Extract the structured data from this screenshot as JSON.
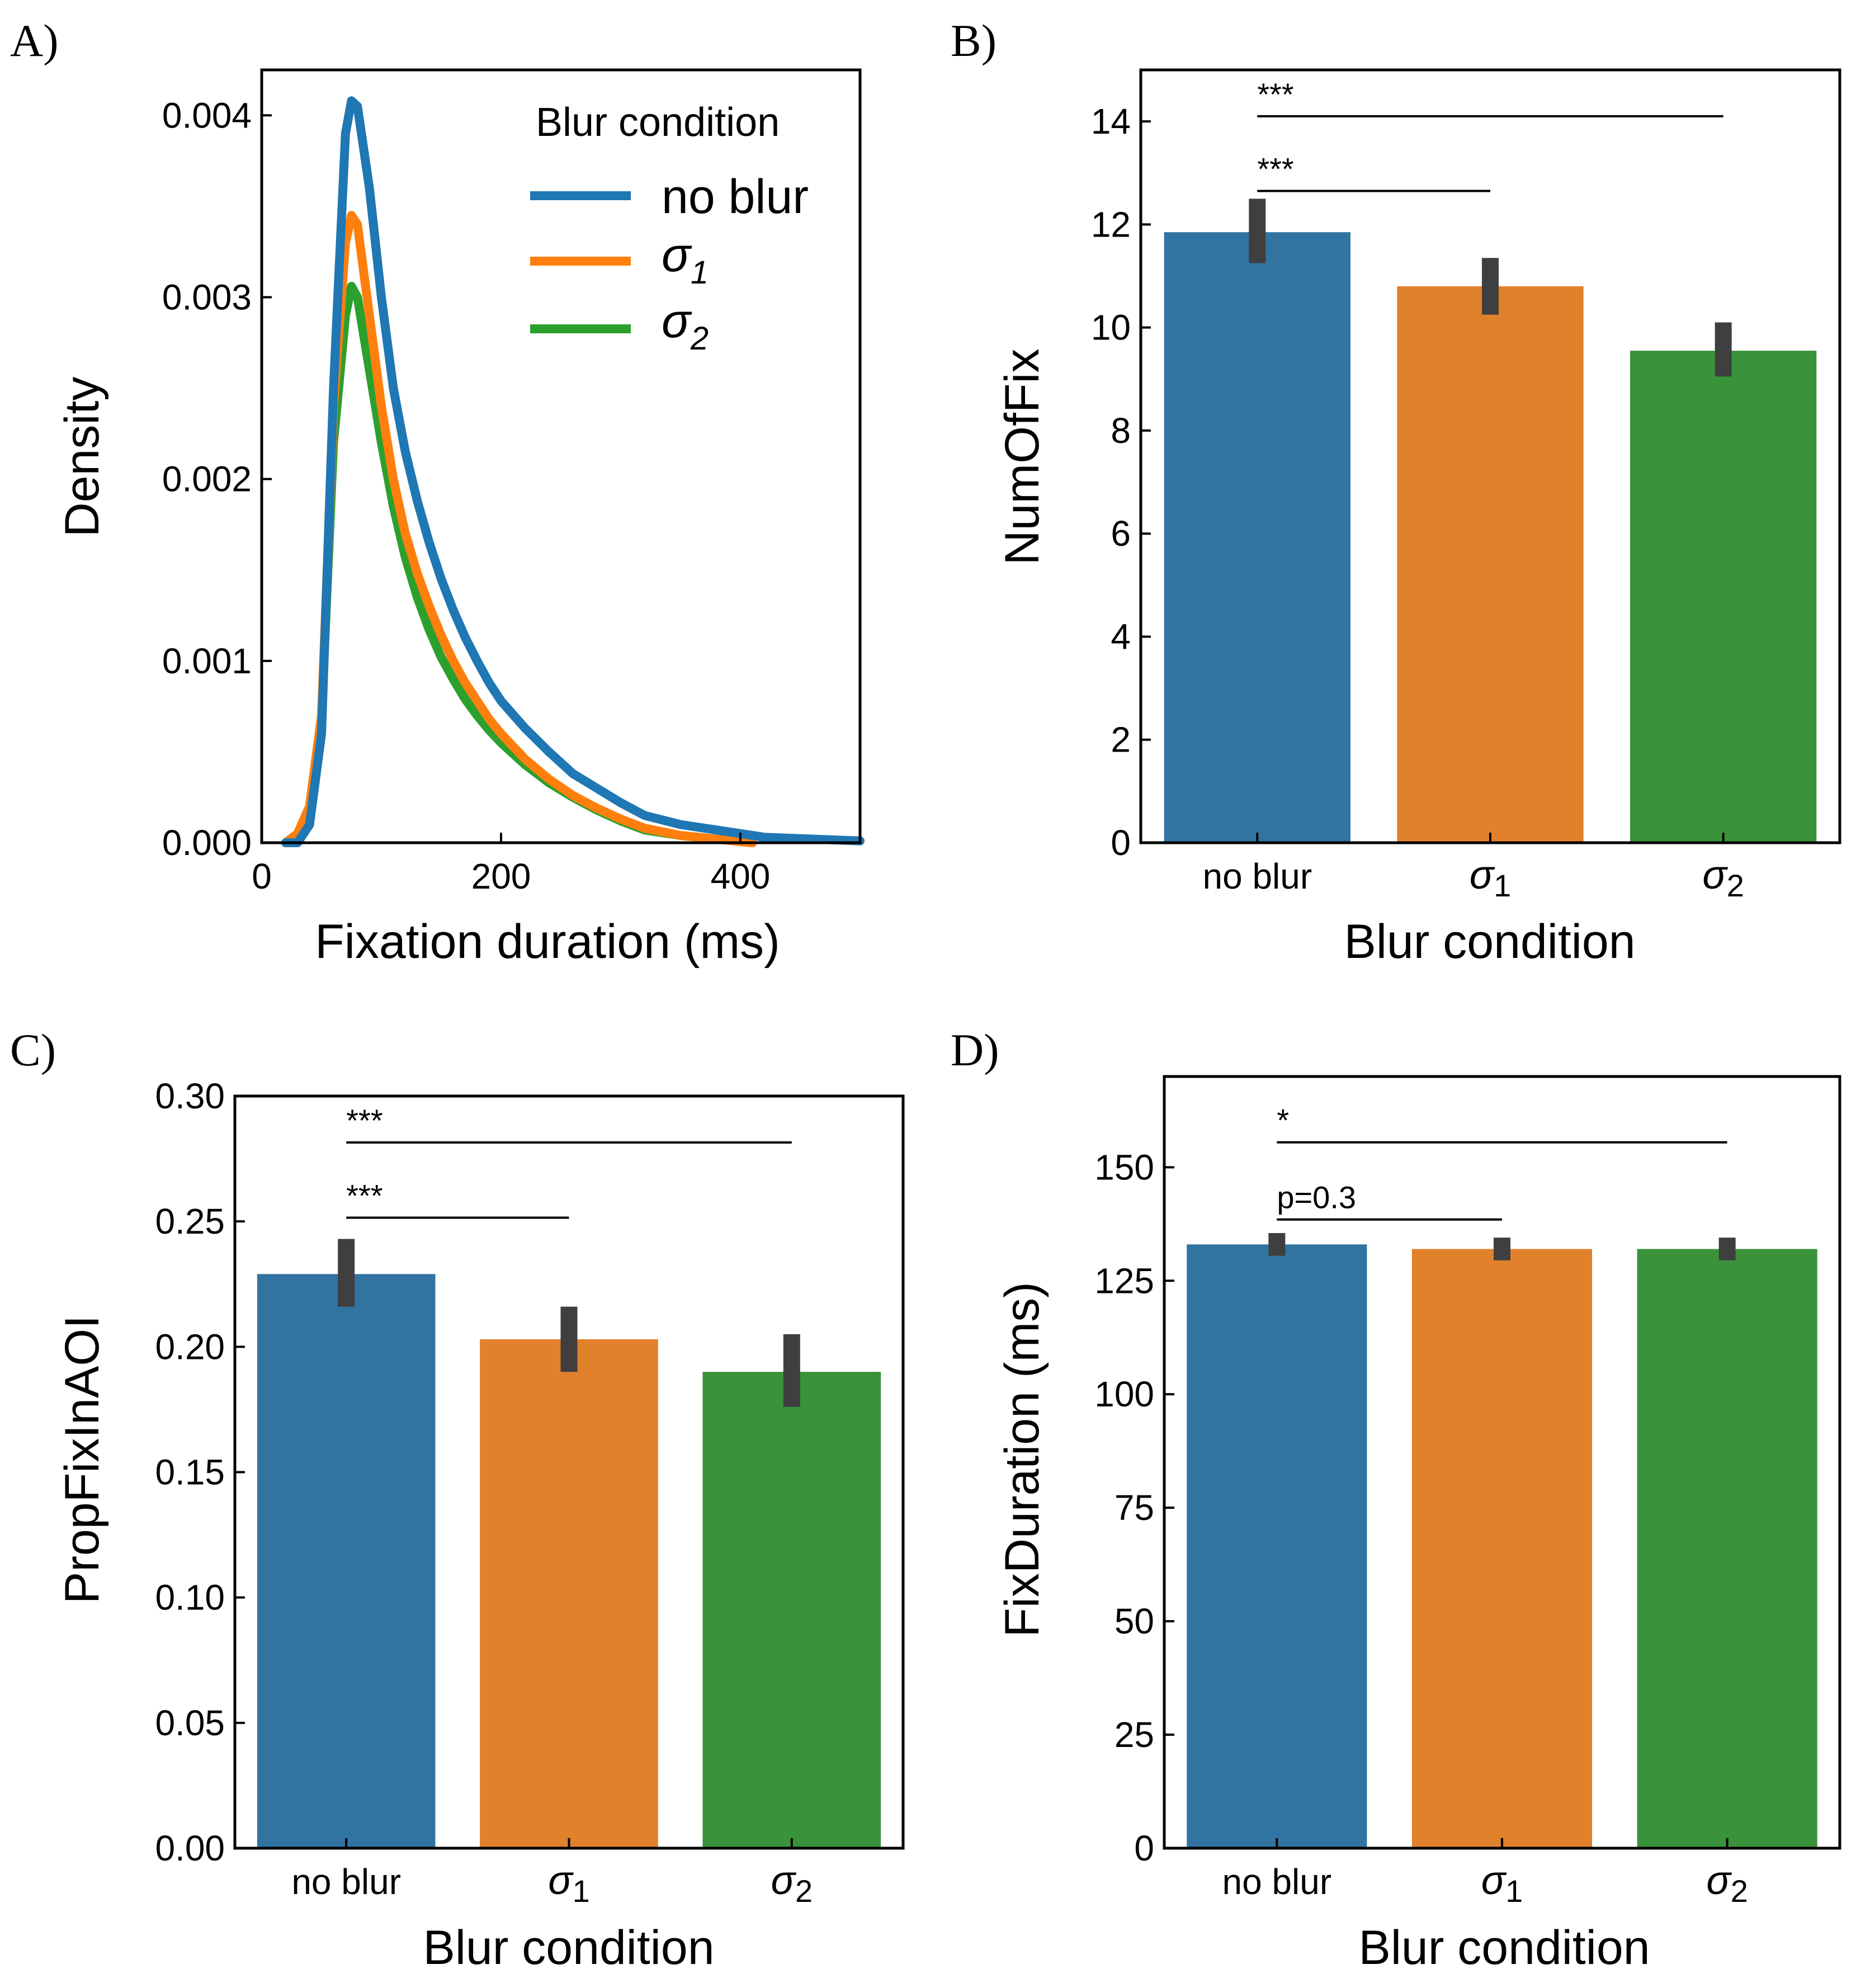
{
  "figure": {
    "colors": {
      "no blur": "#3274a1",
      "σ1": "#e1812c",
      "σ2": "#3a923a",
      "errorbar": "#3f3f3f",
      "kde_no_blur": "#1f77b4",
      "kde_σ1": "#ff7f0e",
      "kde_σ2": "#2ca02c"
    }
  },
  "chart_data": [
    {
      "panel": "A)",
      "type": "line",
      "xlabel": "Fixation duration (ms)",
      "ylabel": "Density",
      "xlim": [
        0,
        500
      ],
      "ylim": [
        0,
        0.00425
      ],
      "xticks": [
        0,
        200,
        400
      ],
      "yticks": [
        0.0,
        0.001,
        0.002,
        0.003,
        0.004
      ],
      "ytick_labels": [
        "0.000",
        "0.001",
        "0.002",
        "0.003",
        "0.004"
      ],
      "legend": {
        "title": "Blur condition",
        "location": "top-right"
      },
      "series": [
        {
          "name": "no blur",
          "name_base": "no blur",
          "name_sub": "",
          "color": "#1f77b4",
          "x": [
            20,
            30,
            40,
            50,
            60,
            70,
            75,
            80,
            90,
            100,
            110,
            120,
            130,
            140,
            150,
            160,
            170,
            180,
            190,
            200,
            220,
            240,
            260,
            280,
            300,
            320,
            350,
            380,
            420,
            460,
            500
          ],
          "y": [
            0,
            0,
            0.0001,
            0.0006,
            0.0025,
            0.0039,
            0.00408,
            0.00405,
            0.0036,
            0.003,
            0.0025,
            0.00215,
            0.00188,
            0.00165,
            0.00145,
            0.00128,
            0.00113,
            0.001,
            0.00088,
            0.00078,
            0.00063,
            0.0005,
            0.00038,
            0.0003,
            0.00022,
            0.00015,
            0.0001,
            7e-05,
            3e-05,
            2e-05,
            1e-05
          ]
        },
        {
          "name": "σ1",
          "name_base": "σ",
          "name_sub": "1",
          "color": "#ff7f0e",
          "x": [
            20,
            30,
            40,
            50,
            60,
            70,
            75,
            80,
            90,
            100,
            110,
            120,
            130,
            140,
            150,
            160,
            170,
            180,
            190,
            200,
            220,
            240,
            260,
            280,
            300,
            320,
            350,
            380,
            410
          ],
          "y": [
            0,
            5e-05,
            0.0002,
            0.0007,
            0.0024,
            0.0033,
            0.00345,
            0.0034,
            0.0029,
            0.0024,
            0.002,
            0.0017,
            0.00148,
            0.0013,
            0.00114,
            0.001,
            0.00088,
            0.00078,
            0.00068,
            0.0006,
            0.00046,
            0.00035,
            0.00026,
            0.00019,
            0.00013,
            8e-05,
            4e-05,
            2e-05,
            0.0
          ]
        },
        {
          "name": "σ2",
          "name_base": "σ",
          "name_sub": "2",
          "color": "#2ca02c",
          "x": [
            20,
            30,
            40,
            50,
            60,
            70,
            75,
            80,
            90,
            100,
            110,
            120,
            130,
            140,
            150,
            160,
            170,
            180,
            190,
            200,
            220,
            240,
            260,
            280,
            300,
            320,
            350,
            380,
            410
          ],
          "y": [
            0,
            5e-05,
            0.0002,
            0.0007,
            0.0022,
            0.0029,
            0.00306,
            0.003,
            0.0026,
            0.0022,
            0.00185,
            0.00157,
            0.00135,
            0.00117,
            0.00102,
            0.0009,
            0.00079,
            0.0007,
            0.00062,
            0.00055,
            0.00043,
            0.00033,
            0.00025,
            0.00018,
            0.00012,
            7e-05,
            4e-05,
            2e-05,
            0.0
          ]
        }
      ]
    },
    {
      "panel": "B)",
      "type": "bar",
      "xlabel": "Blur condition",
      "ylabel": "NumOfFix",
      "ylim": [
        0,
        15
      ],
      "yticks": [
        0,
        2,
        4,
        6,
        8,
        10,
        12,
        14
      ],
      "ytick_labels": [
        "0",
        "2",
        "4",
        "6",
        "8",
        "10",
        "12",
        "14"
      ],
      "categories": [
        "no blur",
        "σ1",
        "σ2"
      ],
      "category_base": [
        "no blur",
        "σ",
        "σ"
      ],
      "category_sub": [
        "",
        "1",
        "2"
      ],
      "values": [
        11.85,
        10.8,
        9.55
      ],
      "ci": [
        [
          11.25,
          12.5
        ],
        [
          10.25,
          11.35
        ],
        [
          9.05,
          10.1
        ]
      ],
      "significance": [
        {
          "from": 0,
          "to": 2,
          "y": 14.1,
          "label": "***"
        },
        {
          "from": 0,
          "to": 1,
          "y": 12.65,
          "label": "***"
        }
      ]
    },
    {
      "panel": "C)",
      "type": "bar",
      "xlabel": "Blur condition",
      "ylabel": "PropFixInAOI",
      "ylim": [
        0,
        0.3
      ],
      "yticks": [
        0.0,
        0.05,
        0.1,
        0.15,
        0.2,
        0.25,
        0.3
      ],
      "ytick_labels": [
        "0.00",
        "0.05",
        "0.10",
        "0.15",
        "0.20",
        "0.25",
        "0.30"
      ],
      "categories": [
        "no blur",
        "σ1",
        "σ2"
      ],
      "category_base": [
        "no blur",
        "σ",
        "σ"
      ],
      "category_sub": [
        "",
        "1",
        "2"
      ],
      "values": [
        0.229,
        0.203,
        0.19
      ],
      "ci": [
        [
          0.216,
          0.243
        ],
        [
          0.19,
          0.216
        ],
        [
          0.176,
          0.205
        ]
      ],
      "significance": [
        {
          "from": 0,
          "to": 2,
          "y": 0.2815,
          "label": "***"
        },
        {
          "from": 0,
          "to": 1,
          "y": 0.2515,
          "label": "***"
        }
      ]
    },
    {
      "panel": "D)",
      "type": "bar",
      "xlabel": "Blur condition",
      "ylabel": "FixDuration (ms)",
      "ylim": [
        0,
        170
      ],
      "yticks": [
        0,
        25,
        50,
        75,
        100,
        125,
        150
      ],
      "ytick_labels": [
        "0",
        "25",
        "50",
        "75",
        "100",
        "125",
        "150"
      ],
      "categories": [
        "no blur",
        "σ1",
        "σ2"
      ],
      "category_base": [
        "no blur",
        "σ",
        "σ"
      ],
      "category_sub": [
        "",
        "1",
        "2"
      ],
      "values": [
        133,
        132,
        132
      ],
      "ci": [
        [
          130.5,
          135.5
        ],
        [
          129.5,
          134.5
        ],
        [
          129.5,
          134.5
        ]
      ],
      "significance": [
        {
          "from": 0,
          "to": 2,
          "y": 155.5,
          "label": "*"
        },
        {
          "from": 0,
          "to": 1,
          "y": 138.5,
          "label": "p=0.3"
        }
      ]
    }
  ]
}
